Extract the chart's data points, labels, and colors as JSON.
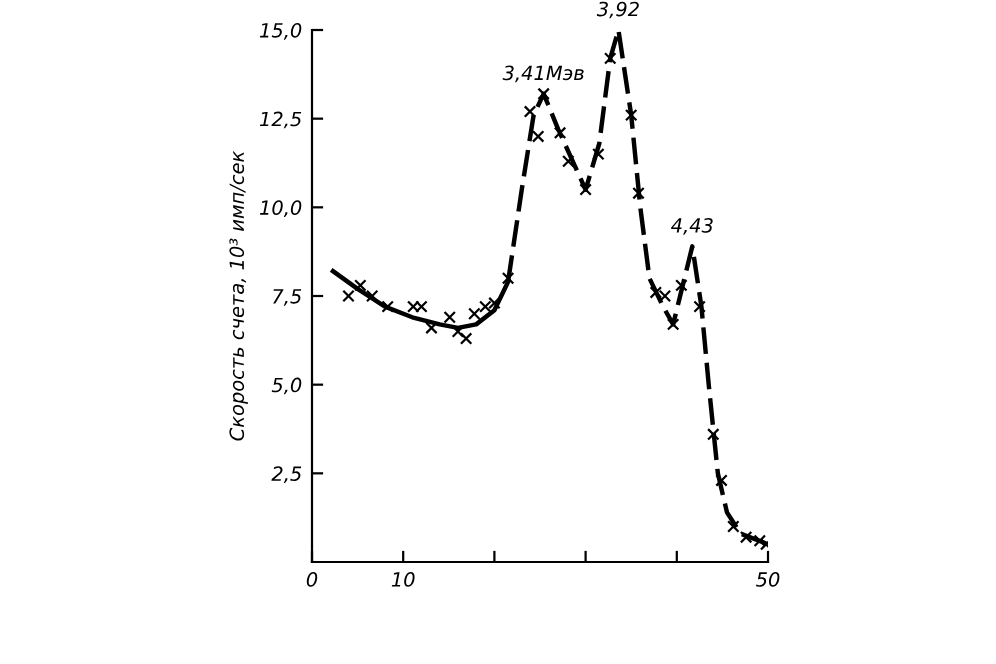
{
  "chart_data": {
    "type": "line",
    "ylabel": "Скорость счета, 10³ имп/сек",
    "xlim": [
      0,
      50
    ],
    "ylim": [
      0,
      15
    ],
    "xticks": [
      0,
      10,
      {
        "value": 20,
        "label": null
      },
      {
        "value": 30,
        "label": null
      },
      {
        "value": 40,
        "label": null
      },
      50
    ],
    "yticks": [
      {
        "value": 2.5,
        "label": "2,5"
      },
      {
        "value": 5,
        "label": "5,0"
      },
      {
        "value": 7.5,
        "label": "7,5"
      },
      {
        "value": 10,
        "label": "10,0"
      },
      {
        "value": 12.5,
        "label": "12,5"
      },
      {
        "value": 15,
        "label": "15,0"
      }
    ],
    "grid": false,
    "legend": false,
    "series": [
      {
        "color": "#000000",
        "line_style": "solid",
        "marker": "none",
        "x": [
          2.3,
          5,
          8,
          11,
          14,
          16,
          18,
          20,
          21.5
        ],
        "values": [
          8.2,
          7.7,
          7.2,
          6.9,
          6.7,
          6.6,
          6.7,
          7.1,
          7.9
        ]
      },
      {
        "color": "#000000",
        "line_style": "dashed",
        "marker": "none",
        "x": [
          21.5,
          23,
          24.3,
          25.4,
          27,
          30,
          31.5,
          32.7,
          33.6,
          35,
          36,
          37,
          38.5,
          39.6,
          41.7,
          42.7,
          43.5,
          44.5,
          45.5,
          47,
          50
        ],
        "values": [
          7.9,
          10.5,
          12.6,
          13.2,
          12.2,
          10.5,
          11.8,
          14.2,
          15.0,
          12.6,
          10,
          8,
          7.2,
          6.7,
          8.9,
          7.2,
          5,
          2.5,
          1.4,
          0.8,
          0.5
        ]
      },
      {
        "type": "scatter",
        "color": "#000000",
        "marker": "cross",
        "x": [
          4.0,
          5.3,
          6.6,
          8.3,
          11.1,
          12.0,
          13.1,
          15.1,
          16.0,
          16.9,
          17.8,
          19.0,
          20.0,
          21.5,
          23.9,
          24.8,
          25.4,
          27.2,
          28.1,
          30.0,
          31.4,
          32.7,
          35.0,
          35.8,
          37.7,
          38.7,
          39.6,
          40.5,
          42.5,
          44.0,
          44.9,
          46.2,
          47.6,
          49.1,
          49.8
        ],
        "values": [
          7.5,
          7.8,
          7.5,
          7.2,
          7.2,
          7.2,
          6.6,
          6.9,
          6.5,
          6.3,
          7.0,
          7.2,
          7.3,
          8.0,
          12.7,
          12.0,
          13.2,
          12.1,
          11.3,
          10.5,
          11.5,
          14.2,
          12.6,
          10.4,
          7.6,
          7.5,
          6.7,
          7.8,
          7.2,
          3.6,
          2.3,
          1.0,
          0.7,
          0.6,
          0.5
        ]
      }
    ],
    "annotations": [
      {
        "text": "3,41Мэв",
        "x": 25.4,
        "y": 13.2
      },
      {
        "text": "3,92",
        "x": 33.6,
        "y": 15.0
      },
      {
        "text": "4,43",
        "x": 41.7,
        "y": 8.9
      }
    ]
  }
}
